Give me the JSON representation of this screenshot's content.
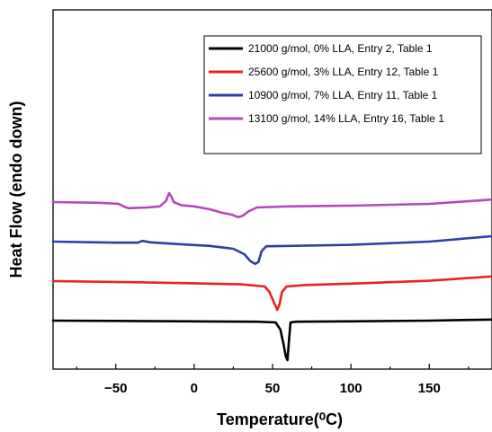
{
  "chart_data": {
    "type": "line",
    "title": "",
    "xlabel": "Temperature(⁰C)",
    "ylabel": "Heat Flow (endo down)",
    "xlim": [
      -90,
      190
    ],
    "ylim": [
      0,
      100
    ],
    "xticks": [
      -50,
      0,
      50,
      100,
      150
    ],
    "yticks_shown": false,
    "grid": false,
    "legend_position": "top-right",
    "series": [
      {
        "name": "21000 g/mol, 0% LLA, Entry 2, Table 1",
        "color": "#000000",
        "points": [
          [
            -90,
            13.5
          ],
          [
            -40,
            13.4
          ],
          [
            0,
            13.3
          ],
          [
            40,
            13.2
          ],
          [
            52,
            13.0
          ],
          [
            55,
            11.0
          ],
          [
            57,
            7.0
          ],
          [
            58.5,
            3.5
          ],
          [
            59.5,
            2.5
          ],
          [
            60.5,
            8.0
          ],
          [
            61.5,
            13.0
          ],
          [
            65,
            13.2
          ],
          [
            100,
            13.3
          ],
          [
            150,
            13.5
          ],
          [
            190,
            13.8
          ]
        ]
      },
      {
        "name": "25600 g/mol, 3% LLA, Entry 12, Table 1",
        "color": "#e8231c",
        "points": [
          [
            -90,
            24.5
          ],
          [
            -40,
            24.2
          ],
          [
            0,
            23.9
          ],
          [
            30,
            23.6
          ],
          [
            45,
            23.0
          ],
          [
            48,
            21.5
          ],
          [
            51,
            18.5
          ],
          [
            53,
            16.5
          ],
          [
            54.5,
            18.0
          ],
          [
            56,
            21.5
          ],
          [
            59,
            23.0
          ],
          [
            70,
            23.4
          ],
          [
            100,
            23.8
          ],
          [
            150,
            24.6
          ],
          [
            190,
            25.8
          ]
        ]
      },
      {
        "name": "10900 g/mol, 7% LLA, Entry 11, Table 1",
        "color": "#2b3fa6",
        "points": [
          [
            -90,
            35.5
          ],
          [
            -50,
            35.2
          ],
          [
            -36,
            35.2
          ],
          [
            -33,
            35.7
          ],
          [
            -28,
            35.3
          ],
          [
            -10,
            34.8
          ],
          [
            10,
            34.3
          ],
          [
            25,
            33.5
          ],
          [
            32,
            32.0
          ],
          [
            36,
            30.0
          ],
          [
            39,
            29.3
          ],
          [
            41,
            29.8
          ],
          [
            43,
            32.8
          ],
          [
            46,
            34.2
          ],
          [
            60,
            34.3
          ],
          [
            100,
            34.6
          ],
          [
            150,
            35.5
          ],
          [
            190,
            37.0
          ]
        ]
      },
      {
        "name": "13100 g/mol, 14% LLA, Entry 16, Table 1",
        "color": "#b24ab8",
        "points": [
          [
            -90,
            46.5
          ],
          [
            -60,
            46.3
          ],
          [
            -48,
            46.0
          ],
          [
            -45,
            45.3
          ],
          [
            -42,
            44.8
          ],
          [
            -30,
            45.0
          ],
          [
            -22,
            45.3
          ],
          [
            -18,
            46.8
          ],
          [
            -16,
            49.0
          ],
          [
            -14.5,
            48.0
          ],
          [
            -13,
            46.5
          ],
          [
            -8,
            45.6
          ],
          [
            0,
            45.3
          ],
          [
            10,
            44.5
          ],
          [
            18,
            43.5
          ],
          [
            24,
            43.0
          ],
          [
            28,
            42.3
          ],
          [
            31,
            42.7
          ],
          [
            35,
            44.0
          ],
          [
            40,
            45.0
          ],
          [
            60,
            45.3
          ],
          [
            100,
            45.5
          ],
          [
            150,
            46.0
          ],
          [
            190,
            47.2
          ]
        ]
      }
    ]
  }
}
